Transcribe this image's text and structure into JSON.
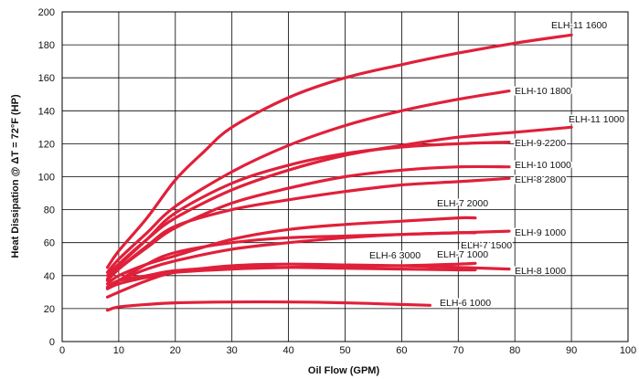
{
  "chart_data": {
    "type": "line",
    "title": "",
    "xlabel": "Oil Flow (GPM)",
    "ylabel": "Heat Dissipation @ ΔT = 72°F (HP)",
    "xlim": [
      0,
      100
    ],
    "ylim": [
      0,
      200
    ],
    "x_ticks": [
      0,
      10,
      20,
      30,
      40,
      50,
      60,
      70,
      80,
      90,
      100
    ],
    "y_ticks": [
      0,
      20,
      40,
      60,
      80,
      100,
      120,
      140,
      160,
      180,
      200
    ],
    "grid": true,
    "legend": "inline labels",
    "line_color": "#e0203a",
    "series": [
      {
        "name": "ELH-11 1600",
        "points": [
          [
            8,
            45
          ],
          [
            10,
            55
          ],
          [
            15,
            75
          ],
          [
            20,
            98
          ],
          [
            25,
            115
          ],
          [
            30,
            130
          ],
          [
            40,
            148
          ],
          [
            50,
            160
          ],
          [
            60,
            168
          ],
          [
            70,
            175
          ],
          [
            80,
            181
          ],
          [
            90,
            186
          ]
        ]
      },
      {
        "name": "ELH-10 1800",
        "points": [
          [
            8,
            42
          ],
          [
            10,
            50
          ],
          [
            15,
            66
          ],
          [
            20,
            82
          ],
          [
            30,
            103
          ],
          [
            40,
            119
          ],
          [
            50,
            131
          ],
          [
            60,
            140
          ],
          [
            70,
            147
          ],
          [
            79,
            152
          ]
        ]
      },
      {
        "name": "ELH-11 1000",
        "points": [
          [
            8,
            40
          ],
          [
            10,
            47
          ],
          [
            15,
            62
          ],
          [
            20,
            75
          ],
          [
            30,
            92
          ],
          [
            40,
            104
          ],
          [
            50,
            113
          ],
          [
            60,
            119
          ],
          [
            70,
            124
          ],
          [
            80,
            127
          ],
          [
            90,
            130
          ]
        ]
      },
      {
        "name": "ELH-9 2200",
        "points": [
          [
            8,
            38
          ],
          [
            10,
            46
          ],
          [
            15,
            62
          ],
          [
            20,
            78
          ],
          [
            30,
            96
          ],
          [
            40,
            107
          ],
          [
            50,
            114
          ],
          [
            60,
            118
          ],
          [
            70,
            120
          ],
          [
            79,
            121
          ]
        ]
      },
      {
        "name": "ELH-10 1000",
        "points": [
          [
            8,
            37
          ],
          [
            10,
            44
          ],
          [
            15,
            57
          ],
          [
            20,
            69
          ],
          [
            30,
            84
          ],
          [
            40,
            93
          ],
          [
            50,
            100
          ],
          [
            60,
            104
          ],
          [
            70,
            106
          ],
          [
            79,
            106
          ]
        ]
      },
      {
        "name": "ELH-8 2800",
        "points": [
          [
            8,
            37
          ],
          [
            10,
            44
          ],
          [
            15,
            58
          ],
          [
            20,
            70
          ],
          [
            30,
            80
          ],
          [
            40,
            86
          ],
          [
            50,
            91
          ],
          [
            60,
            95
          ],
          [
            70,
            97
          ],
          [
            79,
            99
          ]
        ]
      },
      {
        "name": "ELH-7 2000",
        "points": [
          [
            8,
            35
          ],
          [
            10,
            40
          ],
          [
            15,
            47
          ],
          [
            20,
            52
          ],
          [
            30,
            62
          ],
          [
            40,
            68
          ],
          [
            50,
            71
          ],
          [
            60,
            73
          ],
          [
            70,
            75
          ],
          [
            73,
            75
          ]
        ]
      },
      {
        "name": "ELH-9 1000",
        "points": [
          [
            8,
            33
          ],
          [
            10,
            37
          ],
          [
            15,
            44
          ],
          [
            20,
            49
          ],
          [
            30,
            56
          ],
          [
            40,
            60
          ],
          [
            50,
            63
          ],
          [
            60,
            65
          ],
          [
            70,
            66
          ],
          [
            79,
            67
          ]
        ]
      },
      {
        "name": "ELH-7 1500",
        "points": [
          [
            8,
            32
          ],
          [
            10,
            37
          ],
          [
            15,
            47
          ],
          [
            20,
            54
          ],
          [
            30,
            60
          ],
          [
            40,
            63
          ],
          [
            50,
            64
          ],
          [
            60,
            65
          ],
          [
            70,
            66
          ],
          [
            73,
            66
          ]
        ]
      },
      {
        "name": "ELH-6 3000",
        "points": [
          [
            8,
            33
          ],
          [
            10,
            37
          ],
          [
            15,
            40
          ],
          [
            20,
            43
          ],
          [
            30,
            45
          ],
          [
            40,
            45
          ],
          [
            50,
            44.5
          ],
          [
            60,
            44
          ],
          [
            70,
            43.5
          ],
          [
            73,
            43.5
          ]
        ]
      },
      {
        "name": "ELH-7 1000",
        "points": [
          [
            8,
            32
          ],
          [
            10,
            35
          ],
          [
            15,
            39
          ],
          [
            20,
            42
          ],
          [
            30,
            44
          ],
          [
            40,
            45
          ],
          [
            50,
            46
          ],
          [
            60,
            46
          ],
          [
            70,
            47
          ],
          [
            73,
            47.5
          ]
        ]
      },
      {
        "name": "ELH-8 1000",
        "points": [
          [
            8,
            27
          ],
          [
            10,
            30
          ],
          [
            15,
            37
          ],
          [
            20,
            42
          ],
          [
            30,
            46
          ],
          [
            40,
            47
          ],
          [
            50,
            46.5
          ],
          [
            60,
            46
          ],
          [
            70,
            45
          ],
          [
            79,
            44
          ]
        ]
      },
      {
        "name": "ELH-6 1000",
        "points": [
          [
            8,
            19
          ],
          [
            10,
            21
          ],
          [
            15,
            22.5
          ],
          [
            20,
            23.5
          ],
          [
            30,
            24
          ],
          [
            40,
            24
          ],
          [
            50,
            23.5
          ],
          [
            60,
            22.5
          ],
          [
            65,
            22
          ]
        ]
      }
    ]
  }
}
